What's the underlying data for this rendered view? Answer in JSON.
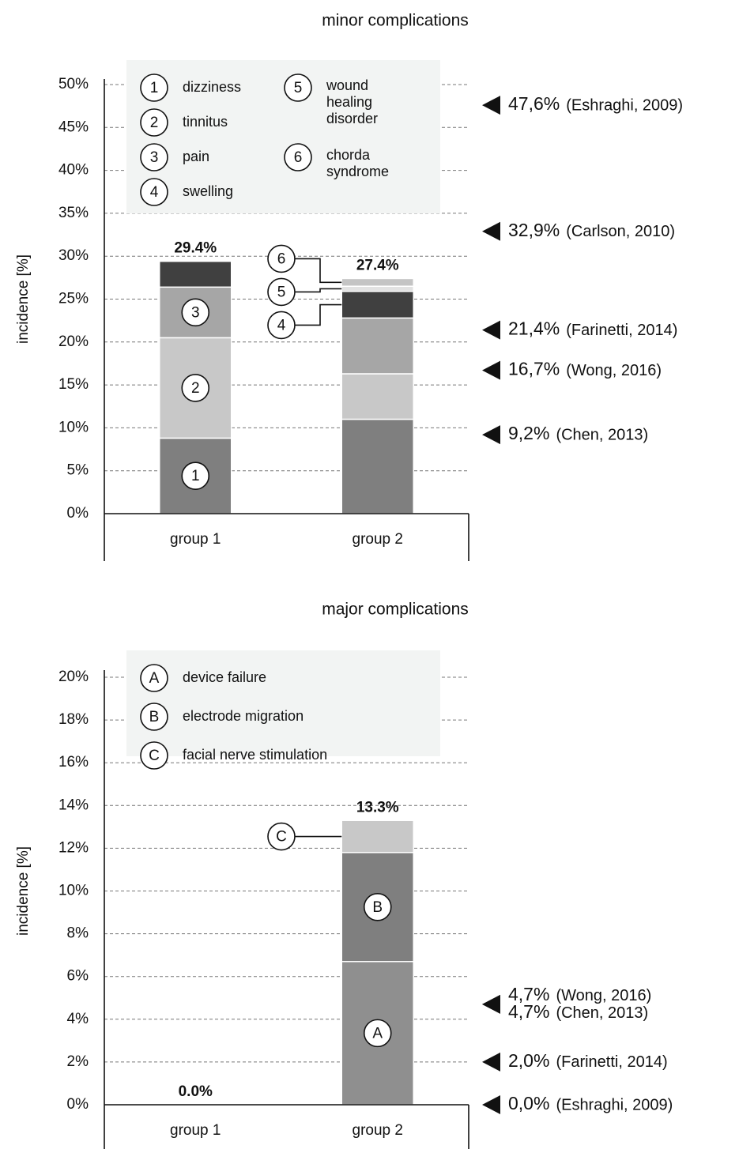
{
  "chart_data": [
    {
      "type": "stacked_bar",
      "title": "minor complications",
      "ylabel": "incidence [%]",
      "categories": [
        "group 1",
        "group 2"
      ],
      "ylim": [
        0,
        50
      ],
      "yticks": [
        {
          "value": 0,
          "label": "0%"
        },
        {
          "value": 5,
          "label": "5%"
        },
        {
          "value": 10,
          "label": "10%"
        },
        {
          "value": 15,
          "label": "15%"
        },
        {
          "value": 20,
          "label": "20%"
        },
        {
          "value": 25,
          "label": "25%"
        },
        {
          "value": 30,
          "label": "30%"
        },
        {
          "value": 35,
          "label": "35%"
        },
        {
          "value": 40,
          "label": "40%"
        },
        {
          "value": 45,
          "label": "45%"
        },
        {
          "value": 50,
          "label": "50%"
        }
      ],
      "grid": true,
      "series": [
        {
          "marker": "1",
          "name": "dizziness",
          "color": "#7f7f7f",
          "values": [
            8.8,
            11.0
          ]
        },
        {
          "marker": "2",
          "name": "tinnitus",
          "color": "#c8c8c8",
          "values": [
            11.7,
            5.3
          ]
        },
        {
          "marker": "3",
          "name": "pain",
          "color": "#a6a6a6",
          "values": [
            5.9,
            6.5
          ]
        },
        {
          "marker": "4",
          "name": "swelling",
          "color": "#404040",
          "values": [
            3.0,
            3.1
          ]
        },
        {
          "marker": "5",
          "name": "wound healing disorder",
          "color": "#e2e2e2",
          "values": [
            0,
            0.6
          ]
        },
        {
          "marker": "6",
          "name": "chorda syndrome",
          "color": "#c4c4c4",
          "values": [
            0,
            0.9
          ]
        }
      ],
      "totals": [
        29.4,
        27.4
      ],
      "total_labels": [
        "29.4%",
        "27.4%"
      ],
      "references": [
        {
          "value": 47.6,
          "label": "47,6%",
          "source": "(Eshraghi, 2009)"
        },
        {
          "value": 32.9,
          "label": "32,9%",
          "source": "(Carlson, 2010)"
        },
        {
          "value": 21.4,
          "label": "21,4%",
          "source": "(Farinetti, 2014)"
        },
        {
          "value": 16.7,
          "label": "16,7%",
          "source": "(Wong, 2016)"
        },
        {
          "value": 9.2,
          "label": "9,2%",
          "source": "(Chen, 2013)"
        }
      ]
    },
    {
      "type": "stacked_bar",
      "title": "major complications",
      "ylabel": "incidence [%]",
      "categories": [
        "group 1",
        "group 2"
      ],
      "ylim": [
        0,
        20
      ],
      "yticks": [
        {
          "value": 0,
          "label": "0%"
        },
        {
          "value": 2,
          "label": "2%"
        },
        {
          "value": 4,
          "label": "4%"
        },
        {
          "value": 6,
          "label": "6%"
        },
        {
          "value": 8,
          "label": "8%"
        },
        {
          "value": 10,
          "label": "10%"
        },
        {
          "value": 12,
          "label": "12%"
        },
        {
          "value": 14,
          "label": "14%"
        },
        {
          "value": 16,
          "label": "16%"
        },
        {
          "value": 18,
          "label": "18%"
        },
        {
          "value": 20,
          "label": "20%"
        }
      ],
      "grid": true,
      "series": [
        {
          "marker": "A",
          "name": "device failure",
          "color": "#8f8f8f",
          "values": [
            0,
            6.7
          ]
        },
        {
          "marker": "B",
          "name": "electrode migration",
          "color": "#7f7f7f",
          "values": [
            0,
            5.1
          ]
        },
        {
          "marker": "C",
          "name": "facial nerve stimulation",
          "color": "#c8c8c8",
          "values": [
            0,
            1.5
          ]
        }
      ],
      "totals": [
        0.0,
        13.3
      ],
      "total_labels": [
        "0.0%",
        "13.3%"
      ],
      "references": [
        {
          "value": 4.7,
          "label": "4,7%",
          "source": "(Wong, 2016)"
        },
        {
          "value": 4.7,
          "label": "4,7%",
          "source": "(Chen, 2013)"
        },
        {
          "value": 2.0,
          "label": "2,0%",
          "source": "(Farinetti, 2014)"
        },
        {
          "value": 0.0,
          "label": "0,0%",
          "source": "(Eshraghi, 2009)"
        }
      ]
    }
  ]
}
